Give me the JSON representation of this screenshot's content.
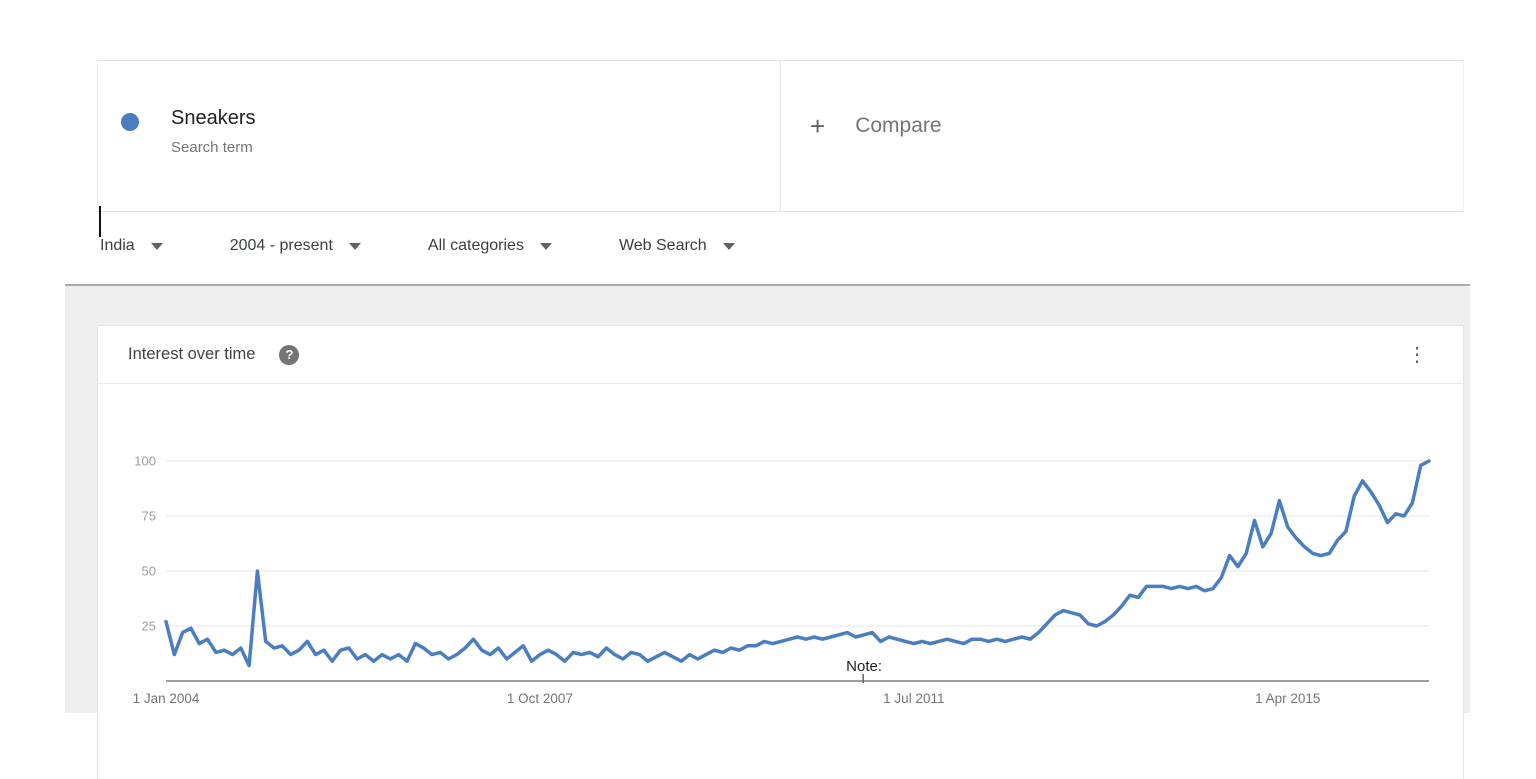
{
  "colors": {
    "accent_blue": "#4a7ec1",
    "grid_line": "#e7e7e7",
    "axis_line": "#9e9e9e",
    "y_label": "#9e9e9e",
    "x_label": "#757575",
    "note_text": "#212121"
  },
  "term_card": {
    "term": "Sneakers",
    "subtitle": "Search term"
  },
  "compare": {
    "plus": "+",
    "label": "Compare"
  },
  "filters": {
    "region": "India",
    "time_range": "2004 - present",
    "category": "All categories",
    "search_type": "Web Search"
  },
  "widget": {
    "title": "Interest over time",
    "help_glyph": "?",
    "menu_glyph": "⋮"
  },
  "chart_data": {
    "type": "line",
    "title": "Interest over time",
    "x_start": "Jan 2004",
    "x_end": "Sep 2016",
    "x_interval": "monthly",
    "ylim": [
      0,
      100
    ],
    "y_ticks": [
      25,
      50,
      75,
      100
    ],
    "grid": true,
    "x_ticks": [
      {
        "label": "1 Jan 2004",
        "month_index": 0
      },
      {
        "label": "1 Oct 2007",
        "month_index": 45
      },
      {
        "label": "1 Jul 2011",
        "month_index": 90
      },
      {
        "label": "1 Apr 2015",
        "month_index": 135
      }
    ],
    "annotation": {
      "text": "Note:",
      "month_index": 84,
      "tick_x_fraction": 0.552
    },
    "series": [
      {
        "name": "Sneakers",
        "color": "#4a7ec1",
        "values": [
          27,
          12,
          22,
          24,
          17,
          19,
          13,
          14,
          12,
          15,
          7,
          50,
          18,
          15,
          16,
          12,
          14,
          18,
          12,
          14,
          9,
          14,
          15,
          10,
          12,
          9,
          12,
          10,
          12,
          9,
          17,
          15,
          12,
          13,
          10,
          12,
          15,
          19,
          14,
          12,
          15,
          10,
          13,
          16,
          9,
          12,
          14,
          12,
          9,
          13,
          12,
          13,
          11,
          15,
          12,
          10,
          13,
          12,
          9,
          11,
          13,
          11,
          9,
          12,
          10,
          12,
          14,
          13,
          15,
          14,
          16,
          16,
          18,
          17,
          18,
          19,
          20,
          19,
          20,
          19,
          20,
          21,
          22,
          20,
          21,
          22,
          18,
          20,
          19,
          18,
          17,
          18,
          17,
          18,
          19,
          18,
          17,
          19,
          19,
          18,
          19,
          18,
          19,
          20,
          19,
          22,
          26,
          30,
          32,
          31,
          30,
          26,
          25,
          27,
          30,
          34,
          39,
          38,
          43,
          43,
          43,
          42,
          43,
          42,
          43,
          41,
          42,
          47,
          57,
          52,
          58,
          73,
          61,
          67,
          82,
          70,
          65,
          61,
          58,
          57,
          58,
          64,
          68,
          84,
          91,
          86,
          80,
          72,
          76,
          75,
          81,
          98,
          100
        ]
      }
    ]
  }
}
